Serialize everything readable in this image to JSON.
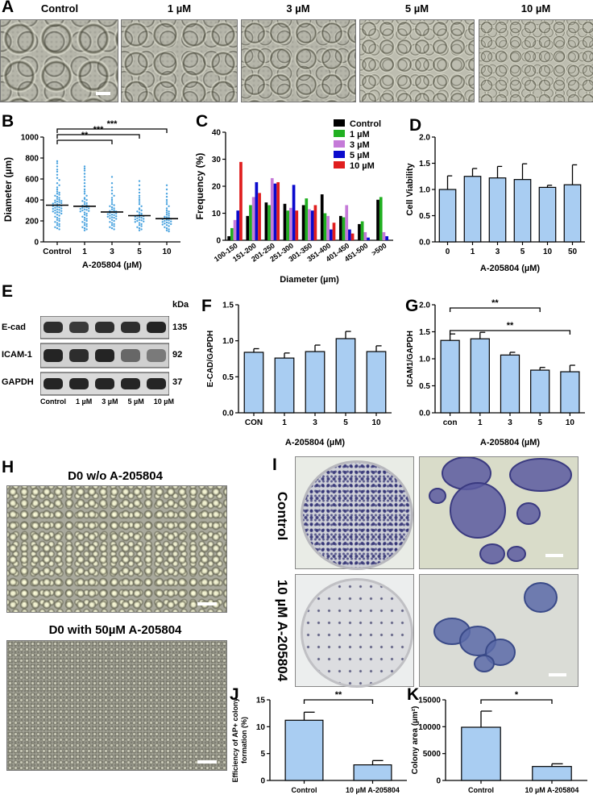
{
  "panels": {
    "A": "A",
    "B": "B",
    "C": "C",
    "D": "D",
    "E": "E",
    "F": "F",
    "G": "G",
    "H": "H",
    "I": "I",
    "J": "J",
    "K": "K"
  },
  "panelA": {
    "captions": [
      "Control",
      "1 µM",
      "3 µM",
      "5 µM",
      "10 µM"
    ]
  },
  "panelE": {
    "kda_label": "kDa",
    "rows": [
      {
        "name": "E-cad",
        "kda": "135"
      },
      {
        "name": "ICAM-1",
        "kda": "92"
      },
      {
        "name": "GAPDH",
        "kda": "37"
      }
    ],
    "lanes": [
      "Control",
      "1 µM",
      "3 µM",
      "5 µM",
      "10 µM"
    ]
  },
  "panelH": {
    "top_caption": "D0 w/o A-205804",
    "bottom_caption": "D0 with 50µM A-205804"
  },
  "panelI": {
    "row_labels": [
      "Control",
      "10 µM A-205804"
    ]
  },
  "colors": {
    "bar_fill": "#a9cdf2",
    "scatter": "#4aa3df",
    "control": "#000000",
    "1uM": "#21b021",
    "3uM": "#c57ad8",
    "5uM": "#0a0acd",
    "10uM": "#e01e1e"
  },
  "chart_data": [
    {
      "id": "B",
      "type": "scatter",
      "categories": [
        "Control",
        "1",
        "3",
        "5",
        "10"
      ],
      "means": [
        350,
        340,
        285,
        250,
        222
      ],
      "xlabel": "A-205804 (µM)",
      "ylabel": "Diameter (µm)",
      "ylim": [
        0,
        1000
      ],
      "yticks": [
        0,
        200,
        400,
        600,
        800,
        1000
      ],
      "points": {
        "Control": [
          770,
          750,
          720,
          690,
          670,
          640,
          610,
          590,
          560,
          540,
          520,
          500,
          480,
          470,
          460,
          450,
          440,
          430,
          420,
          410,
          400,
          395,
          390,
          385,
          380,
          375,
          370,
          365,
          360,
          355,
          350,
          345,
          340,
          335,
          330,
          325,
          320,
          315,
          310,
          305,
          300,
          295,
          290,
          285,
          280,
          275,
          270,
          260,
          250,
          240,
          230,
          220,
          210,
          200,
          190,
          180,
          170,
          160,
          150,
          140,
          130,
          120
        ],
        "1": [
          720,
          700,
          680,
          650,
          620,
          590,
          560,
          530,
          500,
          480,
          460,
          440,
          420,
          410,
          400,
          390,
          380,
          370,
          360,
          350,
          345,
          340,
          335,
          330,
          325,
          320,
          315,
          310,
          305,
          300,
          295,
          290,
          280,
          270,
          260,
          250,
          240,
          230,
          220,
          210,
          200,
          190,
          180,
          170,
          160,
          150,
          140,
          130,
          120,
          110
        ],
        "3": [
          620,
          560,
          520,
          490,
          460,
          440,
          420,
          400,
          380,
          360,
          350,
          340,
          330,
          320,
          310,
          300,
          295,
          290,
          285,
          280,
          275,
          270,
          265,
          260,
          255,
          250,
          245,
          240,
          235,
          230,
          225,
          220,
          210,
          200,
          190,
          180,
          170,
          160,
          150,
          140,
          130,
          120
        ],
        "5": [
          580,
          540,
          500,
          470,
          440,
          420,
          400,
          380,
          360,
          340,
          320,
          310,
          300,
          290,
          280,
          270,
          260,
          255,
          250,
          245,
          240,
          235,
          230,
          225,
          220,
          215,
          210,
          205,
          200,
          195,
          190,
          180,
          170,
          160,
          150,
          140,
          130,
          120,
          110
        ],
        "10": [
          540,
          500,
          460,
          430,
          400,
          380,
          360,
          340,
          320,
          300,
          290,
          280,
          270,
          260,
          250,
          240,
          235,
          230,
          225,
          220,
          215,
          210,
          205,
          200,
          195,
          190,
          185,
          180,
          175,
          170,
          165,
          160,
          150,
          140,
          130,
          120,
          110,
          100
        ]
      },
      "significance": [
        {
          "from": "Control",
          "to": "3",
          "label": "**"
        },
        {
          "from": "Control",
          "to": "5",
          "label": "***"
        },
        {
          "from": "Control",
          "to": "10",
          "label": "***"
        }
      ]
    },
    {
      "id": "C",
      "type": "bar",
      "categories": [
        "100-150",
        "151-200",
        "201-250",
        "251-300",
        "301-350",
        "351-400",
        "401-450",
        "451-500",
        ">500"
      ],
      "series": [
        {
          "name": "Control",
          "values": [
            1.5,
            9,
            14,
            13.5,
            13,
            17,
            9,
            6,
            15
          ]
        },
        {
          "name": "1 µM",
          "values": [
            4.5,
            13,
            13,
            11,
            15.5,
            10,
            8.5,
            7,
            16
          ]
        },
        {
          "name": "3 µM",
          "values": [
            7.5,
            16,
            23,
            12,
            11.5,
            9,
            13,
            3,
            3
          ]
        },
        {
          "name": "5 µM",
          "values": [
            11,
            21.5,
            21,
            20.5,
            11,
            4,
            4,
            1,
            1.5
          ]
        },
        {
          "name": "10 µM",
          "values": [
            29,
            17.5,
            21.5,
            11,
            13,
            6.5,
            2.5,
            0,
            0
          ]
        }
      ],
      "xlabel": "Diameter (µm)",
      "ylabel": "Frequency (%)",
      "ylim": [
        0,
        40
      ],
      "yticks": [
        0,
        10,
        20,
        30,
        40
      ],
      "legend_position": "top-right"
    },
    {
      "id": "D",
      "type": "bar",
      "categories": [
        "0",
        "1",
        "3",
        "5",
        "10",
        "50"
      ],
      "values": [
        1.0,
        1.25,
        1.22,
        1.19,
        1.04,
        1.09
      ],
      "errors": [
        0.26,
        0.15,
        0.22,
        0.3,
        0.04,
        0.38
      ],
      "xlabel": "A-205804 (µM)",
      "ylabel": "Cell Viability",
      "ylim": [
        0,
        2.0
      ],
      "yticks": [
        0.0,
        0.5,
        1.0,
        1.5,
        2.0
      ]
    },
    {
      "id": "F",
      "type": "bar",
      "categories": [
        "CON",
        "1",
        "3",
        "5",
        "10"
      ],
      "values": [
        0.84,
        0.76,
        0.85,
        1.03,
        0.85
      ],
      "errors": [
        0.05,
        0.07,
        0.09,
        0.1,
        0.08
      ],
      "xlabel": "A-205804 (µM)",
      "ylabel": "E-CAD/GAPDH",
      "ylim": [
        0,
        1.5
      ],
      "yticks": [
        0.0,
        0.5,
        1.0,
        1.5
      ]
    },
    {
      "id": "G",
      "type": "bar",
      "categories": [
        "con",
        "1",
        "3",
        "5",
        "10"
      ],
      "values": [
        1.34,
        1.37,
        1.07,
        0.79,
        0.76
      ],
      "errors": [
        0.12,
        0.12,
        0.05,
        0.05,
        0.12
      ],
      "xlabel": "A-205804 (µM)",
      "ylabel": "ICAM1/GAPDH",
      "ylim": [
        0,
        2.0
      ],
      "yticks": [
        0.0,
        0.5,
        1.0,
        1.5,
        2.0
      ],
      "significance": [
        {
          "from": "con",
          "to": "5",
          "label": "**"
        },
        {
          "from": "con",
          "to": "10",
          "label": "**"
        }
      ]
    },
    {
      "id": "J",
      "type": "bar",
      "categories": [
        "Control",
        "10 µM A-205804"
      ],
      "values": [
        11.2,
        2.9
      ],
      "errors": [
        1.5,
        0.8
      ],
      "ylabel": "Efficiency of AP+ colony formation (%)",
      "ylim": [
        0,
        15
      ],
      "yticks": [
        0,
        5,
        10,
        15
      ],
      "significance": [
        {
          "from": "Control",
          "to": "10 µM A-205804",
          "label": "**"
        }
      ]
    },
    {
      "id": "K",
      "type": "bar",
      "categories": [
        "Control",
        "10 µM A-205804"
      ],
      "values": [
        9900,
        2600
      ],
      "errors": [
        3000,
        500
      ],
      "ylabel": "Colony area (µm²)",
      "ylim": [
        0,
        15000
      ],
      "yticks": [
        0,
        5000,
        10000,
        15000
      ],
      "significance": [
        {
          "from": "Control",
          "to": "10 µM A-205804",
          "label": "*"
        }
      ]
    }
  ]
}
